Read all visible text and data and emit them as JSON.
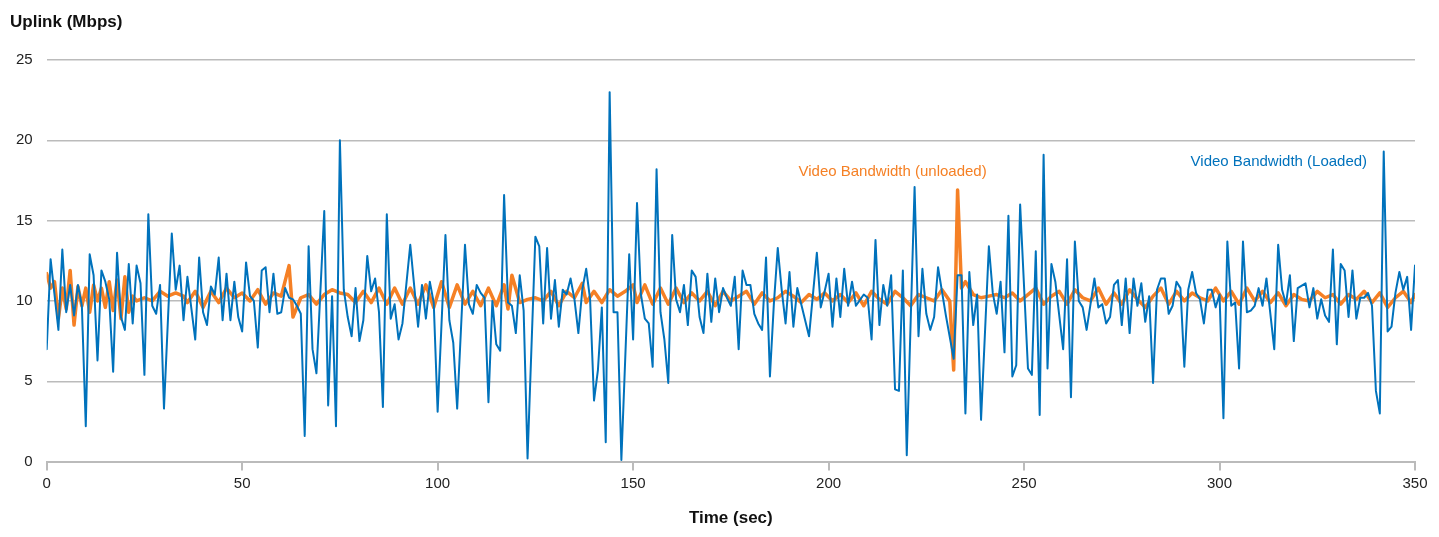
{
  "chart_data": {
    "type": "line",
    "xlabel": "Time (sec)",
    "ylabel": "Uplink (Mbps)",
    "xlim": [
      0,
      350
    ],
    "xticks": [
      0,
      50,
      100,
      150,
      200,
      250,
      300,
      350
    ],
    "ylim": [
      0,
      25
    ],
    "yticks": [
      0,
      5,
      10,
      15,
      20,
      25
    ],
    "grid": "y",
    "legend": false,
    "marker": "none",
    "line_style": "solid",
    "series": [
      {
        "name": "Video Bandwidth (Loaded)",
        "color": "#0072bc",
        "x": [
          0,
          1,
          3,
          4,
          5,
          6,
          7,
          8,
          9,
          10,
          11,
          12,
          13,
          14,
          15,
          16,
          17,
          18,
          19,
          20,
          21,
          22,
          23,
          24,
          25,
          26,
          27,
          28,
          29,
          30,
          32,
          33,
          34,
          35,
          36,
          38,
          39,
          40,
          41,
          42,
          43,
          44,
          45,
          46,
          47,
          48,
          49,
          50,
          51,
          52,
          53,
          54,
          55,
          56,
          57,
          58,
          59,
          60,
          61,
          62,
          63,
          64,
          65,
          66,
          67,
          68,
          69,
          71,
          72,
          73,
          74,
          75,
          76,
          77,
          78,
          79,
          80,
          81,
          82,
          83,
          84,
          85,
          86,
          87,
          88,
          89,
          90,
          91,
          93,
          95,
          96,
          97,
          98,
          99,
          100,
          102,
          103,
          104,
          105,
          107,
          108,
          109,
          110,
          111,
          112,
          113,
          114,
          115,
          116,
          117,
          118,
          119,
          120,
          121,
          122,
          123,
          125,
          126,
          127,
          128,
          129,
          130,
          131,
          132,
          133,
          134,
          135,
          136,
          137,
          138,
          139,
          140,
          141,
          142,
          143,
          144,
          145,
          146,
          147,
          149,
          150,
          151,
          152,
          153,
          154,
          155,
          156,
          157,
          158,
          159,
          160,
          161,
          162,
          163,
          164,
          165,
          166,
          167,
          168,
          169,
          170,
          171,
          172,
          173,
          174,
          175,
          176,
          177,
          178,
          179,
          180,
          181,
          182,
          183,
          184,
          185,
          186,
          187,
          188,
          189,
          190,
          191,
          192,
          195,
          197,
          198,
          199,
          200,
          201,
          202,
          203,
          204,
          205,
          206,
          207,
          209,
          210,
          211,
          212,
          213,
          214,
          215,
          216,
          217,
          218,
          219,
          220,
          222,
          223,
          224,
          225,
          226,
          227,
          228,
          230,
          232,
          233,
          234,
          235,
          236,
          237,
          238,
          239,
          241,
          242,
          243,
          244,
          245,
          246,
          247,
          248,
          249,
          251,
          252,
          253,
          254,
          255,
          256,
          257,
          258,
          260,
          261,
          262,
          263,
          264,
          265,
          266,
          268,
          269,
          270,
          271,
          272,
          273,
          274,
          275,
          276,
          277,
          278,
          279,
          280,
          281,
          282,
          283,
          284,
          285,
          286,
          287,
          288,
          289,
          290,
          291,
          292,
          293,
          294,
          295,
          296,
          297,
          298,
          299,
          300,
          301,
          302,
          303,
          304,
          305,
          306,
          307,
          308,
          309,
          310,
          311,
          312,
          314,
          315,
          316,
          317,
          318,
          319,
          320,
          322,
          323,
          324,
          325,
          326,
          327,
          328,
          329,
          330,
          331,
          332,
          333,
          334,
          335,
          336,
          337,
          338,
          339,
          340,
          341,
          342,
          343,
          344,
          345,
          346,
          347,
          348,
          349,
          350
        ],
        "values": [
          7.0,
          12.6,
          8.2,
          13.2,
          9.3,
          11.0,
          9.1,
          11.0,
          9.7,
          2.2,
          12.9,
          11.6,
          6.3,
          11.9,
          11.2,
          10.1,
          5.6,
          13.0,
          9.0,
          8.2,
          12.3,
          8.6,
          12.2,
          11.1,
          5.4,
          15.4,
          9.7,
          9.2,
          11.0,
          3.3,
          14.2,
          10.7,
          12.2,
          8.8,
          11.5,
          7.6,
          12.7,
          9.3,
          8.5,
          10.9,
          10.4,
          12.7,
          8.8,
          11.7,
          8.8,
          11.2,
          9.0,
          8.1,
          12.4,
          10.3,
          10.0,
          7.1,
          11.9,
          12.1,
          9.3,
          11.7,
          9.2,
          9.3,
          10.8,
          10.2,
          10.1,
          9.7,
          9.2,
          1.6,
          13.4,
          7.0,
          5.5,
          15.6,
          3.5,
          10.3,
          2.2,
          20.0,
          10.7,
          9.0,
          7.8,
          10.8,
          7.5,
          8.8,
          12.8,
          10.6,
          11.4,
          9.3,
          3.4,
          15.4,
          8.9,
          9.8,
          7.6,
          8.6,
          13.5,
          8.4,
          11.0,
          8.9,
          11.2,
          9.9,
          3.1,
          14.1,
          8.8,
          7.4,
          3.3,
          13.5,
          9.8,
          9.2,
          11.0,
          10.5,
          10.2,
          3.7,
          10.0,
          7.3,
          6.9,
          16.6,
          9.9,
          9.7,
          8.0,
          11.6,
          9.4,
          0.2,
          14.0,
          13.4,
          8.6,
          13.3,
          8.9,
          11.3,
          8.4,
          10.7,
          10.4,
          11.4,
          10.1,
          8.0,
          10.7,
          12.0,
          10.1,
          3.8,
          5.7,
          9.6,
          1.2,
          23.0,
          9.3,
          9.3,
          0.1,
          12.9,
          7.6,
          16.1,
          10.4,
          8.9,
          8.6,
          5.9,
          18.2,
          9.3,
          7.6,
          4.9,
          14.1,
          10.1,
          9.3,
          11.0,
          8.5,
          11.9,
          11.5,
          9.0,
          8.0,
          11.7,
          8.7,
          11.4,
          9.3,
          10.8,
          10.2,
          9.7,
          11.5,
          7.0,
          11.9,
          11.0,
          11.0,
          9.2,
          8.6,
          8.2,
          12.7,
          5.3,
          9.8,
          13.3,
          10.7,
          8.6,
          11.8,
          8.4,
          10.8,
          7.8,
          13.0,
          9.6,
          10.6,
          11.7,
          8.4,
          11.4,
          9.0,
          12.0,
          9.7,
          11.2,
          9.7,
          10.4,
          10.2,
          7.6,
          13.8,
          8.5,
          11.0,
          9.7,
          11.6,
          4.5,
          4.4,
          11.9,
          0.4,
          17.1,
          7.8,
          12.0,
          9.2,
          8.2,
          9.0,
          12.1,
          9.1,
          6.4,
          11.6,
          11.6,
          3.0,
          11.8,
          8.5,
          10.4,
          2.6,
          13.4,
          10.5,
          9.2,
          11.2,
          6.8,
          15.3,
          5.3,
          6.0,
          16.0,
          5.8,
          5.4,
          13.1,
          2.9,
          19.1,
          5.8,
          12.3,
          11.2,
          7.0,
          12.6,
          4.0,
          13.7,
          10.0,
          9.6,
          8.2,
          11.4,
          9.6,
          9.8,
          8.6,
          9.0,
          11.0,
          11.3,
          8.5,
          11.4,
          8.0,
          11.4,
          9.7,
          11.1,
          8.7,
          10.3,
          4.9,
          10.7,
          11.4,
          11.4,
          9.2,
          9.7,
          11.2,
          10.8,
          5.9,
          10.7,
          11.8,
          10.5,
          10.1,
          8.6,
          10.7,
          10.7,
          9.6,
          10.4,
          2.7,
          13.7,
          9.7,
          9.9,
          5.8,
          13.7,
          9.3,
          9.4,
          9.7,
          10.8,
          9.7,
          11.4,
          7.0,
          13.5,
          10.7,
          9.8,
          11.6,
          7.5,
          10.8,
          11.1,
          9.6,
          10.8,
          8.9,
          10.1,
          9.1,
          8.7,
          13.2,
          7.3,
          12.3,
          11.9,
          9.0,
          11.9,
          8.9,
          10.2,
          10.2,
          10.5,
          9.7,
          4.4,
          3.0,
          19.3,
          8.1,
          8.4,
          10.5,
          11.8,
          10.7,
          11.5,
          8.2,
          12.2
        ]
      },
      {
        "name": "Video Bandwidth (unloaded)",
        "color": "#f58025",
        "x": [
          0,
          1,
          2,
          3,
          4,
          5,
          6,
          7,
          8,
          9,
          10,
          11,
          12,
          13,
          14,
          15,
          16,
          17,
          18,
          19,
          20,
          21,
          22,
          23,
          25,
          27,
          29,
          31,
          33,
          35,
          36,
          38,
          40,
          42,
          44,
          46,
          48,
          50,
          52,
          54,
          56,
          58,
          60,
          62,
          63,
          65,
          67,
          69,
          71,
          73,
          75,
          77,
          79,
          81,
          83,
          85,
          87,
          89,
          91,
          93,
          95,
          97,
          99,
          101,
          103,
          105,
          107,
          109,
          111,
          113,
          115,
          117,
          118,
          119,
          121,
          123,
          125,
          127,
          129,
          131,
          133,
          135,
          137,
          138,
          140,
          142,
          144,
          146,
          148,
          150,
          151,
          153,
          155,
          157,
          159,
          161,
          163,
          165,
          167,
          169,
          171,
          173,
          175,
          177,
          179,
          181,
          183,
          185,
          187,
          189,
          191,
          193,
          195,
          197,
          199,
          201,
          203,
          205,
          207,
          209,
          211,
          213,
          215,
          217,
          219,
          221,
          223,
          225,
          227,
          229,
          231,
          232,
          233,
          234,
          235,
          237,
          239,
          241,
          243,
          245,
          247,
          249,
          251,
          253,
          255,
          257,
          259,
          261,
          263,
          265,
          267,
          269,
          271,
          273,
          275,
          277,
          279,
          281,
          283,
          285,
          287,
          289,
          291,
          293,
          295,
          297,
          299,
          301,
          303,
          305,
          307,
          309,
          311,
          313,
          315,
          317,
          319,
          321,
          323,
          325,
          327,
          329,
          331,
          333,
          335,
          337,
          339,
          341,
          343,
          345,
          347,
          349,
          350
        ],
        "values": [
          11.7,
          10.8,
          11.2,
          8.9,
          10.8,
          9.5,
          11.9,
          8.5,
          10.9,
          9.7,
          10.8,
          9.3,
          11.0,
          10.0,
          10.8,
          9.6,
          11.2,
          9.4,
          11.3,
          8.9,
          11.5,
          9.3,
          10.3,
          10.0,
          10.2,
          10.0,
          10.6,
          10.3,
          10.5,
          10.3,
          9.9,
          10.6,
          9.6,
          10.6,
          9.9,
          10.8,
          10.2,
          10.5,
          10.0,
          10.7,
          9.8,
          10.5,
          10.3,
          12.2,
          9.0,
          10.2,
          10.4,
          9.8,
          10.4,
          10.7,
          10.5,
          10.4,
          9.9,
          10.6,
          9.9,
          10.8,
          9.8,
          10.8,
          9.8,
          10.8,
          9.8,
          11.0,
          9.6,
          11.2,
          9.6,
          11.0,
          9.8,
          10.6,
          9.7,
          10.8,
          9.7,
          11.0,
          9.5,
          11.6,
          9.9,
          10.1,
          10.2,
          10.0,
          10.6,
          9.7,
          10.6,
          10.2,
          11.1,
          9.9,
          10.6,
          9.9,
          10.7,
          10.3,
          10.6,
          11.0,
          9.9,
          11.0,
          9.8,
          10.8,
          9.8,
          10.8,
          9.9,
          10.5,
          10.0,
          10.6,
          9.7,
          10.6,
          10.0,
          10.3,
          10.6,
          9.8,
          10.5,
          10.0,
          10.2,
          10.6,
          10.3,
          9.9,
          10.4,
          10.1,
          10.5,
          10.0,
          10.4,
          9.9,
          10.5,
          9.7,
          10.6,
          10.1,
          9.8,
          10.6,
          10.2,
          9.7,
          10.4,
          10.2,
          10.0,
          10.7,
          10.0,
          5.7,
          16.9,
          10.8,
          11.2,
          10.4,
          10.2,
          10.3,
          10.4,
          10.2,
          10.5,
          10.0,
          10.4,
          10.8,
          9.8,
          10.3,
          10.6,
          9.8,
          10.7,
          10.2,
          10.0,
          10.8,
          9.8,
          10.5,
          9.8,
          10.7,
          10.1,
          9.6,
          10.3,
          10.8,
          9.8,
          10.6,
          10.0,
          10.5,
          10.2,
          10.0,
          10.8,
          10.0,
          10.6,
          9.8,
          10.8,
          10.0,
          10.6,
          9.9,
          10.5,
          9.7,
          10.4,
          10.1,
          10.0,
          10.6,
          10.2,
          10.4,
          9.8,
          10.4,
          10.1,
          10.6,
          9.9,
          10.5,
          9.6,
          10.2,
          10.6,
          9.9,
          10.4
        ]
      }
    ]
  }
}
